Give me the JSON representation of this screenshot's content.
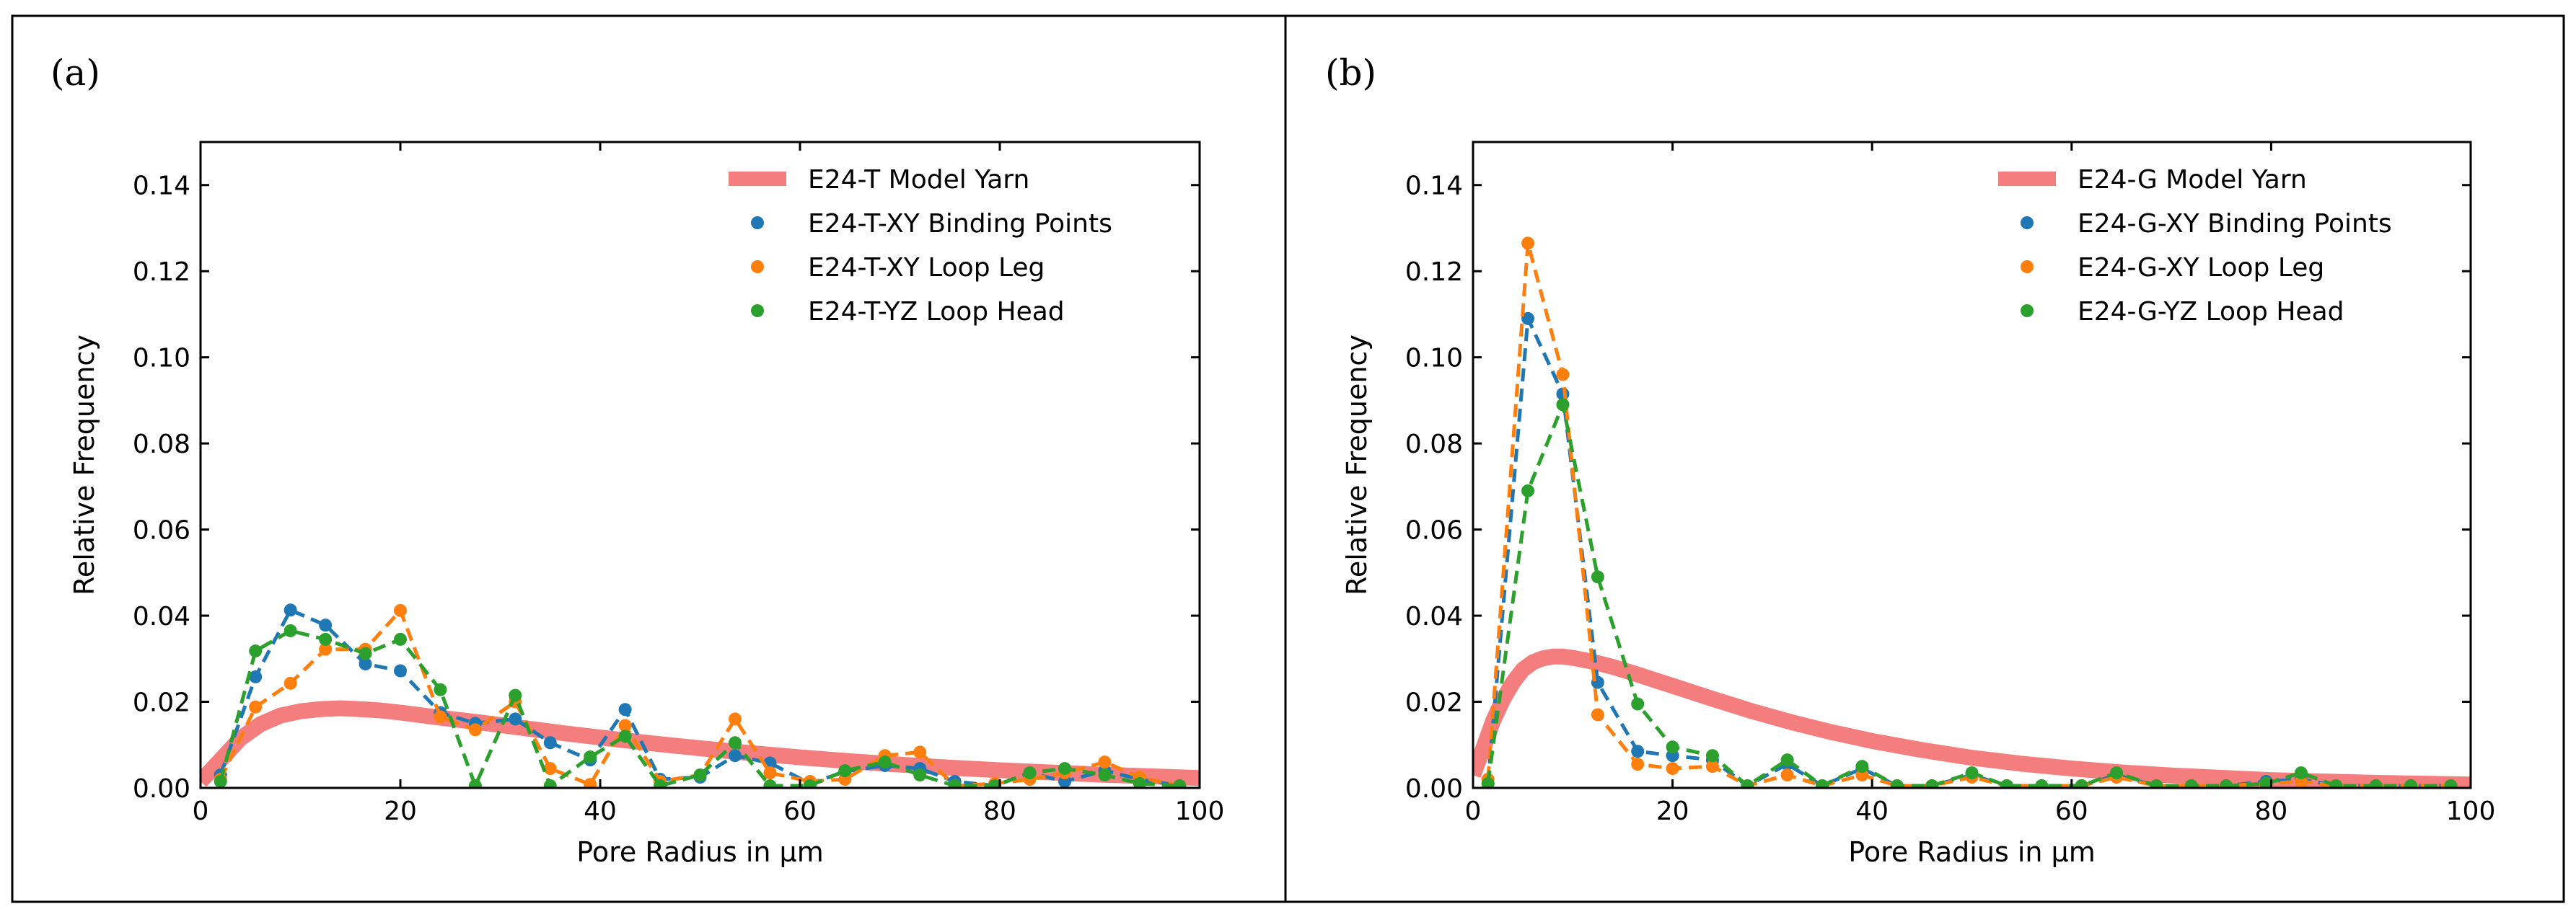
{
  "chart_data": [
    {
      "type": "line",
      "panel_label": "(a)",
      "xlabel": "Pore Radius in μm",
      "ylabel": "Relative Frequency",
      "xlim": [
        0,
        100
      ],
      "ylim": [
        0,
        0.15
      ],
      "x_ticks": [
        0,
        20,
        40,
        60,
        80,
        100
      ],
      "x_tick_labels": [
        "0",
        "20",
        "40",
        "60",
        "80",
        "100"
      ],
      "y_ticks": [
        0,
        0.02,
        0.04,
        0.06,
        0.08,
        0.1,
        0.12,
        0.14
      ],
      "y_tick_labels": [
        "0.00",
        "0.02",
        "0.04",
        "0.06",
        "0.08",
        "0.10",
        "0.12",
        "0.14"
      ],
      "legend_position": "top-right",
      "series": [
        {
          "name": "E24-T Model Yarn",
          "style": "thick-line",
          "color": "#f47e7e",
          "x": [
            0,
            2,
            4,
            6,
            8,
            10,
            12,
            14,
            16,
            18,
            20,
            24,
            28,
            32,
            36,
            40,
            45,
            50,
            55,
            60,
            65,
            70,
            75,
            80,
            85,
            90,
            95,
            100
          ],
          "y": [
            0.0015,
            0.0065,
            0.0115,
            0.0148,
            0.0168,
            0.0178,
            0.0183,
            0.0185,
            0.0183,
            0.018,
            0.0175,
            0.0163,
            0.0152,
            0.014,
            0.0128,
            0.0117,
            0.0104,
            0.0092,
            0.0081,
            0.0071,
            0.0062,
            0.0054,
            0.0047,
            0.0041,
            0.0036,
            0.0031,
            0.0027,
            0.0023
          ]
        },
        {
          "name": "E24-T-XY Binding Points",
          "style": "dashed-markers",
          "color": "#1f77b4",
          "x": [
            2,
            5.5,
            9,
            12.5,
            16.5,
            20,
            24,
            27.5,
            31.5,
            35,
            39,
            42.5,
            46,
            50,
            53.5,
            57,
            61,
            64.5,
            68.5,
            72,
            75.5,
            79.5,
            83,
            86.5,
            90.5,
            94,
            98
          ],
          "y": [
            0.003,
            0.0258,
            0.0413,
            0.0378,
            0.0288,
            0.0272,
            0.0175,
            0.015,
            0.016,
            0.0105,
            0.0065,
            0.0182,
            0.002,
            0.0025,
            0.0075,
            0.0058,
            0.001,
            0.0038,
            0.0052,
            0.0045,
            0.0015,
            0.0005,
            0.0035,
            0.0015,
            0.004,
            0.002,
            0.0005
          ]
        },
        {
          "name": "E24-T-XY Loop Leg",
          "style": "dashed-markers",
          "color": "#ff7f0e",
          "x": [
            2,
            5.5,
            9,
            12.5,
            16.5,
            20,
            24,
            27.5,
            31.5,
            35,
            39,
            42.5,
            46,
            50,
            53.5,
            57,
            61,
            64.5,
            68.5,
            72,
            75.5,
            79.5,
            83,
            86.5,
            90.5,
            94,
            98
          ],
          "y": [
            0.002,
            0.0188,
            0.0243,
            0.0322,
            0.0322,
            0.0412,
            0.0165,
            0.0135,
            0.02,
            0.0045,
            0.0008,
            0.0145,
            0.0015,
            0.003,
            0.016,
            0.0035,
            0.0015,
            0.002,
            0.0075,
            0.0083,
            0.0005,
            0.001,
            0.002,
            0.0035,
            0.006,
            0.0025,
            0.0005
          ]
        },
        {
          "name": "E24-T-YZ Loop Head",
          "style": "dashed-markers",
          "color": "#2ca02c",
          "x": [
            2,
            5.5,
            9,
            12.5,
            16.5,
            20,
            24,
            27.5,
            31.5,
            35,
            39,
            42.5,
            46,
            50,
            53.5,
            57,
            61,
            64.5,
            68.5,
            72,
            75.5,
            79.5,
            83,
            86.5,
            90.5,
            94,
            98
          ],
          "y": [
            0.0015,
            0.0318,
            0.0365,
            0.0345,
            0.0312,
            0.0345,
            0.0228,
            0.0005,
            0.0215,
            0.0005,
            0.0072,
            0.012,
            0.0005,
            0.003,
            0.0105,
            0.0005,
            0.0005,
            0.004,
            0.006,
            0.003,
            0.0005,
            0.0005,
            0.0035,
            0.0045,
            0.003,
            0.001,
            0.0005
          ]
        }
      ]
    },
    {
      "type": "line",
      "panel_label": "(b)",
      "xlabel": "Pore Radius in μm",
      "ylabel": "Relative Frequency",
      "xlim": [
        0,
        100
      ],
      "ylim": [
        0,
        0.15
      ],
      "x_ticks": [
        0,
        20,
        40,
        60,
        80,
        100
      ],
      "x_tick_labels": [
        "0",
        "20",
        "40",
        "60",
        "80",
        "100"
      ],
      "y_ticks": [
        0,
        0.02,
        0.04,
        0.06,
        0.08,
        0.1,
        0.12,
        0.14
      ],
      "y_tick_labels": [
        "0.00",
        "0.02",
        "0.04",
        "0.06",
        "0.08",
        "0.10",
        "0.12",
        "0.14"
      ],
      "legend_position": "top-right",
      "series": [
        {
          "name": "E24-G Model Yarn",
          "style": "thick-line",
          "color": "#f47e7e",
          "x": [
            0,
            1,
            2,
            3,
            4,
            5,
            6,
            7,
            8,
            9,
            10,
            12,
            14,
            16,
            18,
            20,
            24,
            28,
            32,
            36,
            40,
            45,
            50,
            55,
            60,
            65,
            70,
            80,
            90,
            100
          ],
          "y": [
            0.003,
            0.009,
            0.0155,
            0.0205,
            0.0245,
            0.0275,
            0.0292,
            0.0301,
            0.0305,
            0.0305,
            0.0302,
            0.0293,
            0.0281,
            0.0267,
            0.0252,
            0.0237,
            0.0207,
            0.0178,
            0.0152,
            0.0129,
            0.0109,
            0.0088,
            0.007,
            0.0056,
            0.0045,
            0.0036,
            0.0029,
            0.0018,
            0.0012,
            0.0008
          ]
        },
        {
          "name": "E24-G-XY Binding Points",
          "style": "dashed-markers",
          "color": "#1f77b4",
          "x": [
            1.5,
            5.5,
            9,
            12.5,
            16.5,
            20,
            24,
            27.5,
            31.5,
            35,
            39,
            42.5,
            46,
            50,
            53.5,
            57,
            61,
            64.5,
            68.5,
            72,
            75.5,
            79.5,
            83,
            86.5,
            90.5,
            94,
            98
          ],
          "y": [
            0.001,
            0.109,
            0.0915,
            0.0245,
            0.0085,
            0.0075,
            0.0065,
            0.0005,
            0.0055,
            0.0005,
            0.0045,
            0.0005,
            0.0005,
            0.003,
            0.0005,
            0.0005,
            0.0005,
            0.003,
            0.0005,
            0.0005,
            0.0005,
            0.0015,
            0.002,
            0.0005,
            0.0005,
            0.0005,
            0.0005
          ]
        },
        {
          "name": "E24-G-XY Loop Leg",
          "style": "dashed-markers",
          "color": "#ff7f0e",
          "x": [
            1.5,
            5.5,
            9,
            12.5,
            16.5,
            20,
            24,
            27.5,
            31.5,
            35,
            39,
            42.5,
            46,
            50,
            53.5,
            57,
            61,
            64.5,
            68.5,
            72,
            75.5,
            79.5,
            83,
            86.5,
            90.5,
            94,
            98
          ],
          "y": [
            0.002,
            0.1265,
            0.096,
            0.017,
            0.0055,
            0.0045,
            0.005,
            0.0005,
            0.003,
            0.0005,
            0.003,
            0.0005,
            0.0005,
            0.0025,
            0.0005,
            0.0005,
            0.0005,
            0.0025,
            0.0005,
            0.0005,
            0.0005,
            0.001,
            0.0015,
            0.0005,
            0.0005,
            0.0005,
            0.0005
          ]
        },
        {
          "name": "E24-G-YZ Loop Head",
          "style": "dashed-markers",
          "color": "#2ca02c",
          "x": [
            1.5,
            5.5,
            9,
            12.5,
            16.5,
            20,
            24,
            27.5,
            31.5,
            35,
            39,
            42.5,
            46,
            50,
            53.5,
            57,
            61,
            64.5,
            68.5,
            72,
            75.5,
            79.5,
            83,
            86.5,
            90.5,
            94,
            98
          ],
          "y": [
            0.001,
            0.069,
            0.089,
            0.049,
            0.0195,
            0.0095,
            0.0075,
            0.0005,
            0.0065,
            0.0005,
            0.005,
            0.0005,
            0.0005,
            0.0035,
            0.0005,
            0.0005,
            0.0005,
            0.0035,
            0.0005,
            0.0005,
            0.0005,
            0.001,
            0.0035,
            0.0005,
            0.0005,
            0.0005,
            0.0005
          ]
        }
      ]
    }
  ]
}
